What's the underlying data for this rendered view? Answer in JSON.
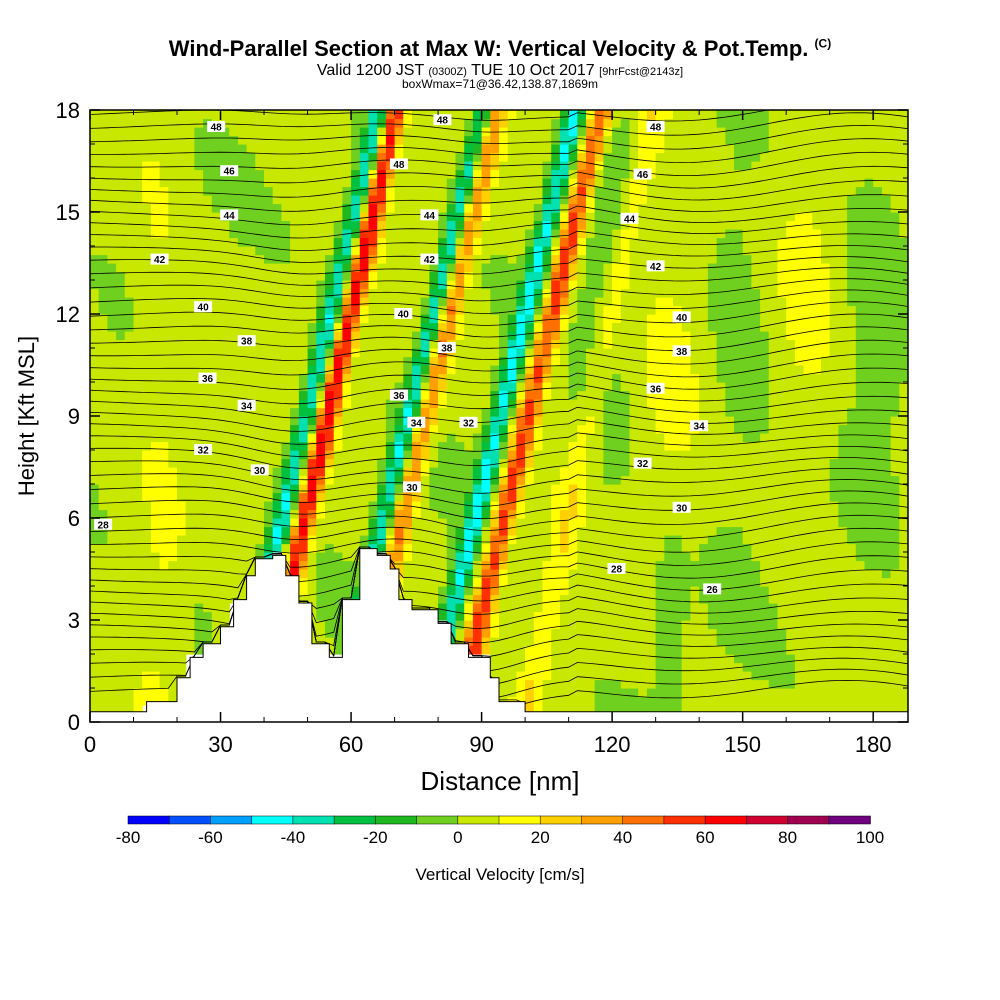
{
  "header": {
    "title": "Wind-Parallel Section at Max W: Vertical Velocity & Pot.Temp.",
    "title_mark": "(C)",
    "valid_prefix": "Valid 1200 JST",
    "valid_zulu": "(0300Z)",
    "valid_date": "TUE 10 Oct 2017",
    "forecast_tag": "[9hrFcst@2143z]",
    "box_info": "boxWmax=71@36.42,138.87,1869m"
  },
  "chart_data": {
    "type": "heatmap",
    "xlabel": "Distance [nm]",
    "ylabel": "Height [Kft MSL]",
    "xlim": [
      0,
      188
    ],
    "ylim": [
      0,
      18
    ],
    "x_ticks": [
      "0",
      "30",
      "60",
      "90",
      "120",
      "150",
      "180"
    ],
    "y_ticks": [
      "0",
      "3",
      "6",
      "9",
      "12",
      "15",
      "18"
    ],
    "colorbar": {
      "label": "Vertical Velocity [cm/s]",
      "tick_labels": [
        "-80",
        "-60",
        "-40",
        "-20",
        "0",
        "20",
        "40",
        "60",
        "80",
        "100"
      ],
      "levels": [
        -80,
        -70,
        -60,
        -50,
        -40,
        -30,
        -20,
        -10,
        0,
        10,
        20,
        30,
        40,
        50,
        60,
        70,
        80,
        90,
        100
      ],
      "colors": [
        "#0000ff",
        "#0050ff",
        "#00a0ff",
        "#00ffff",
        "#00e0b0",
        "#00c040",
        "#20b820",
        "#70d020",
        "#c8e800",
        "#ffff00",
        "#ffd000",
        "#ffa000",
        "#ff7000",
        "#ff3000",
        "#ff0000",
        "#d00030",
        "#a00050",
        "#700080"
      ]
    },
    "terrain": [
      [
        0,
        0.3
      ],
      [
        13,
        0.3
      ],
      [
        13,
        0.6
      ],
      [
        20,
        0.6
      ],
      [
        20,
        1.3
      ],
      [
        23,
        1.3
      ],
      [
        23,
        1.9
      ],
      [
        26,
        1.9
      ],
      [
        26,
        2.3
      ],
      [
        30,
        2.3
      ],
      [
        30,
        2.8
      ],
      [
        33,
        2.8
      ],
      [
        33,
        3.6
      ],
      [
        36,
        3.6
      ],
      [
        36,
        4.3
      ],
      [
        38,
        4.3
      ],
      [
        38,
        4.8
      ],
      [
        42,
        4.8
      ],
      [
        42,
        4.9
      ],
      [
        45,
        4.9
      ],
      [
        45,
        4.3
      ],
      [
        48,
        4.3
      ],
      [
        48,
        3.5
      ],
      [
        51,
        3.5
      ],
      [
        51,
        2.3
      ],
      [
        55,
        2.3
      ],
      [
        55,
        1.9
      ],
      [
        58,
        1.9
      ],
      [
        58,
        3.6
      ],
      [
        62,
        3.6
      ],
      [
        62,
        5.1
      ],
      [
        66,
        5.1
      ],
      [
        66,
        4.9
      ],
      [
        69,
        4.9
      ],
      [
        69,
        4.5
      ],
      [
        71,
        4.5
      ],
      [
        71,
        3.6
      ],
      [
        74,
        3.6
      ],
      [
        74,
        3.3
      ],
      [
        80,
        3.3
      ],
      [
        80,
        2.9
      ],
      [
        83,
        2.9
      ],
      [
        83,
        2.3
      ],
      [
        87,
        2.3
      ],
      [
        87,
        1.9
      ],
      [
        92,
        1.9
      ],
      [
        92,
        1.3
      ],
      [
        94,
        1.3
      ],
      [
        94,
        0.6
      ],
      [
        100,
        0.6
      ],
      [
        100,
        0.3
      ],
      [
        188,
        0.3
      ]
    ],
    "theta_labels": [
      {
        "text": "48",
        "x": 29,
        "y": 17.5
      },
      {
        "text": "46",
        "x": 32,
        "y": 16.2
      },
      {
        "text": "44",
        "x": 32,
        "y": 14.9
      },
      {
        "text": "42",
        "x": 16,
        "y": 13.6
      },
      {
        "text": "40",
        "x": 26,
        "y": 12.2
      },
      {
        "text": "38",
        "x": 36,
        "y": 11.2
      },
      {
        "text": "36",
        "x": 27,
        "y": 10.1
      },
      {
        "text": "34",
        "x": 36,
        "y": 9.3
      },
      {
        "text": "32",
        "x": 26,
        "y": 8.0
      },
      {
        "text": "30",
        "x": 39,
        "y": 7.4
      },
      {
        "text": "28",
        "x": 3,
        "y": 5.8
      },
      {
        "text": "48",
        "x": 81,
        "y": 17.7
      },
      {
        "text": "48",
        "x": 71,
        "y": 16.4
      },
      {
        "text": "44",
        "x": 78,
        "y": 14.9
      },
      {
        "text": "42",
        "x": 78,
        "y": 13.6
      },
      {
        "text": "40",
        "x": 72,
        "y": 12.0
      },
      {
        "text": "38",
        "x": 82,
        "y": 11.0
      },
      {
        "text": "36",
        "x": 71,
        "y": 9.6
      },
      {
        "text": "34",
        "x": 75,
        "y": 8.8
      },
      {
        "text": "32",
        "x": 87,
        "y": 8.8
      },
      {
        "text": "30",
        "x": 74,
        "y": 6.9
      },
      {
        "text": "48",
        "x": 130,
        "y": 17.5
      },
      {
        "text": "46",
        "x": 127,
        "y": 16.1
      },
      {
        "text": "44",
        "x": 124,
        "y": 14.8
      },
      {
        "text": "42",
        "x": 130,
        "y": 13.4
      },
      {
        "text": "40",
        "x": 136,
        "y": 11.9
      },
      {
        "text": "38",
        "x": 136,
        "y": 10.9
      },
      {
        "text": "36",
        "x": 130,
        "y": 9.8
      },
      {
        "text": "34",
        "x": 140,
        "y": 8.7
      },
      {
        "text": "32",
        "x": 127,
        "y": 7.6
      },
      {
        "text": "30",
        "x": 136,
        "y": 6.3
      },
      {
        "text": "28",
        "x": 121,
        "y": 4.5
      },
      {
        "text": "26",
        "x": 143,
        "y": 3.9
      }
    ]
  }
}
